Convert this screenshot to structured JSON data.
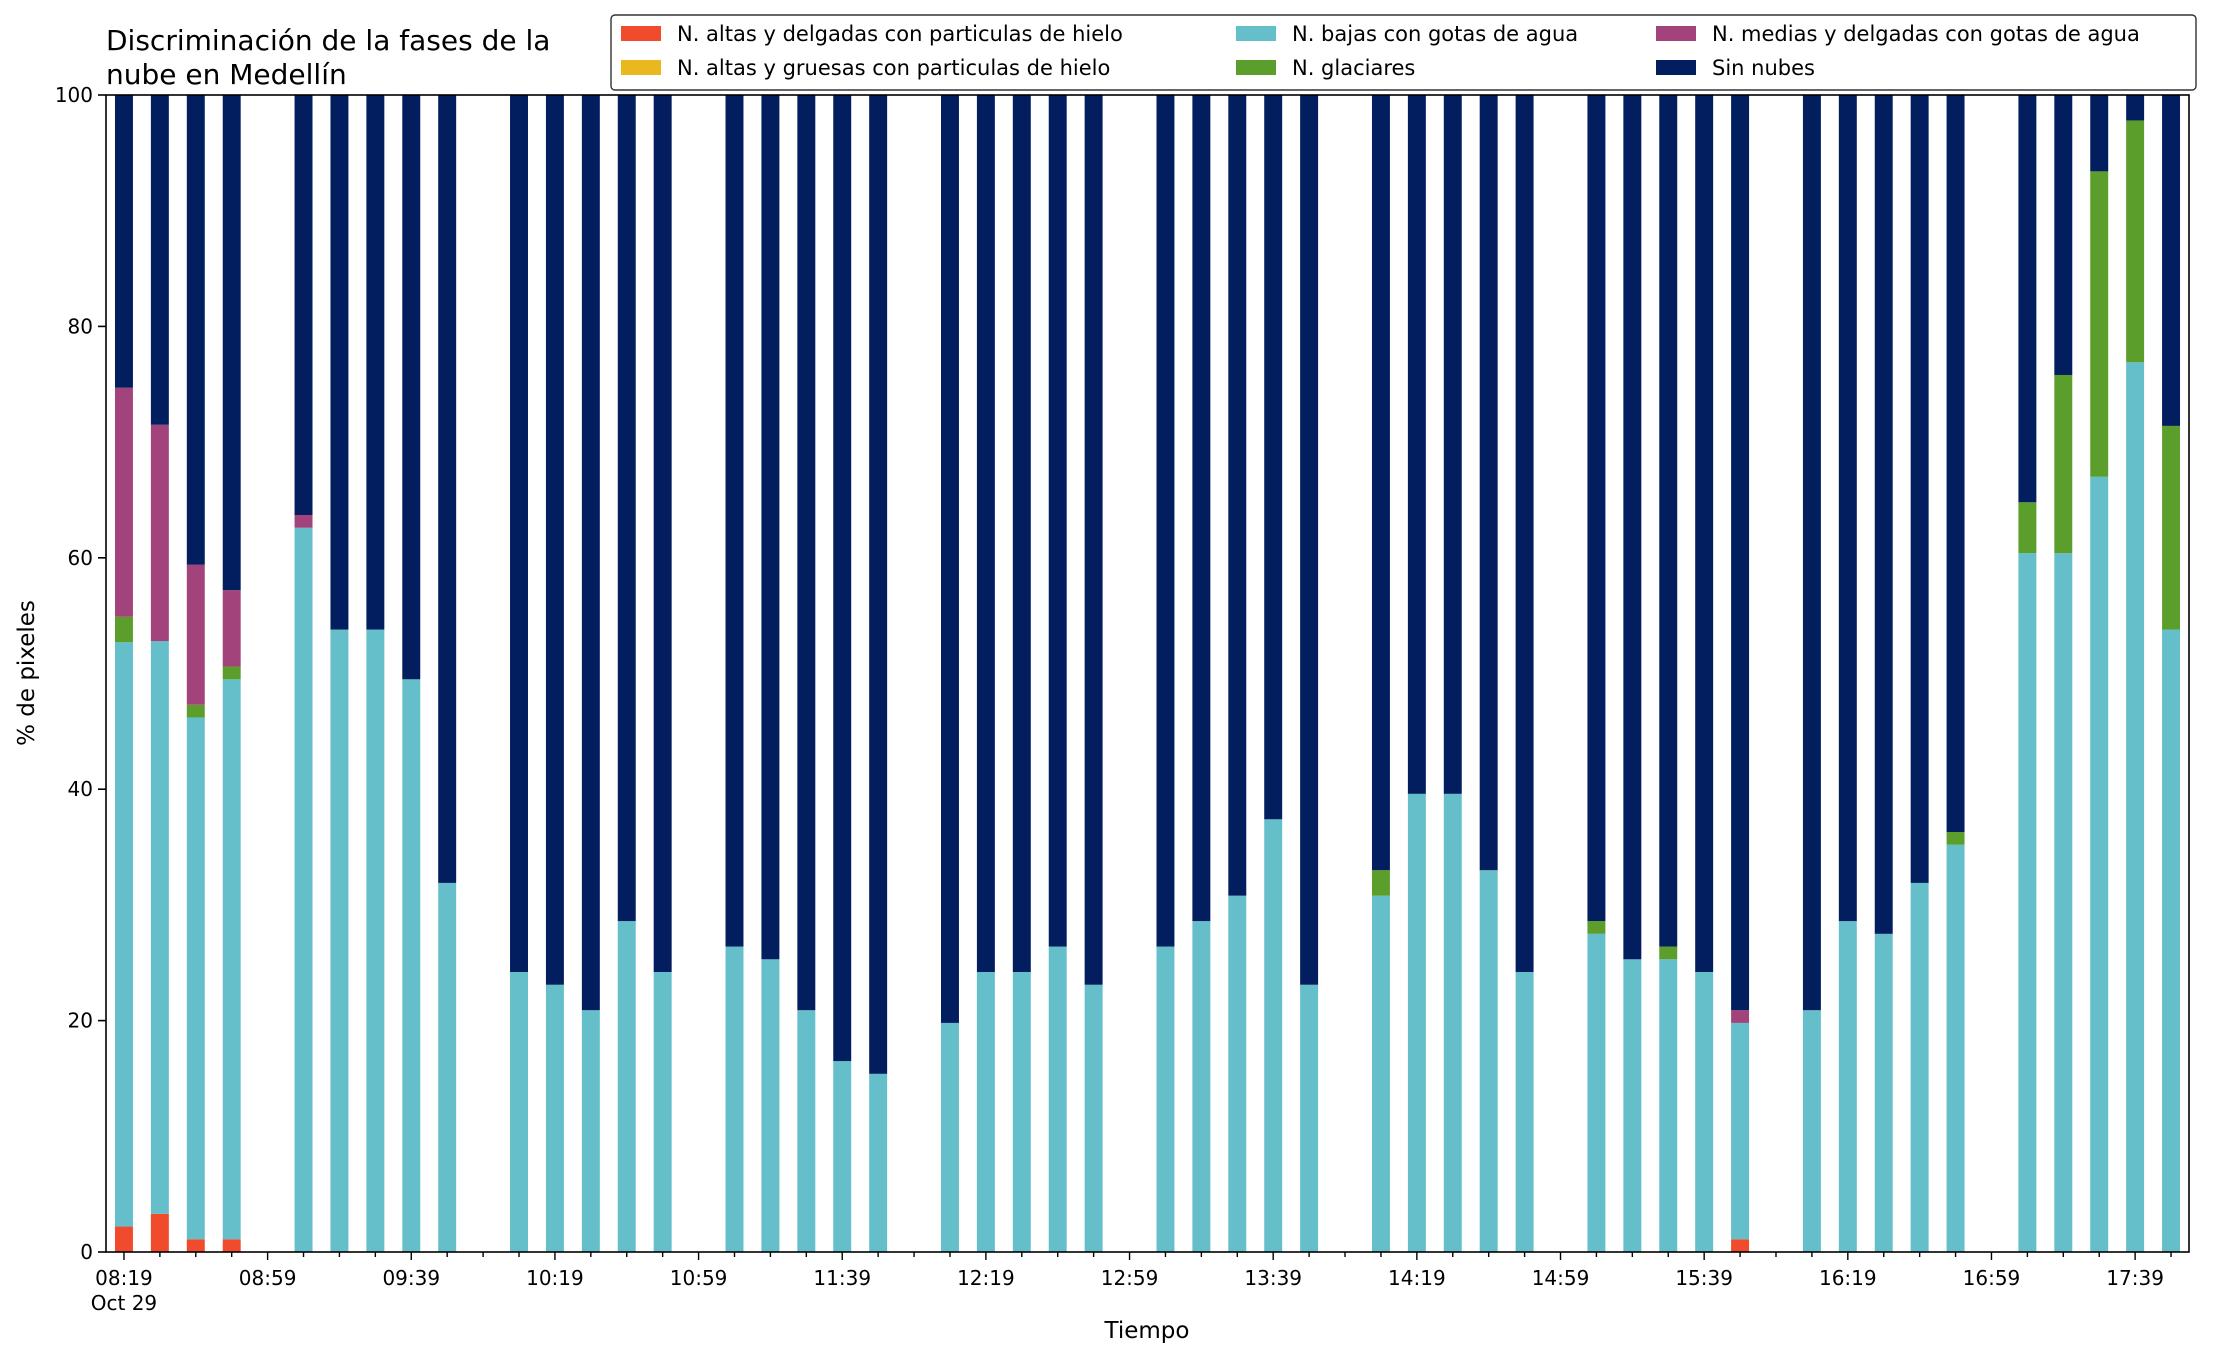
{
  "chart_data": {
    "type": "bar",
    "stacked": true,
    "title_lines": [
      "Discriminación de la fases de la",
      "nube en Medellín"
    ],
    "xlabel": "Tiempo",
    "ylabel": "% de pixeles",
    "ylim": [
      0,
      100
    ],
    "yticks": [
      0,
      20,
      40,
      60,
      80,
      100
    ],
    "x_tick_labels": [
      "08:19",
      "08:59",
      "09:39",
      "10:19",
      "10:59",
      "11:39",
      "12:19",
      "12:59",
      "13:39",
      "14:19",
      "14:59",
      "15:39",
      "16:19",
      "16:59",
      "17:39"
    ],
    "x_tick_sublabel": "Oct 29",
    "x_range_minutes": [
      494,
      1074
    ],
    "bar_width_minutes": 5,
    "legend_location": "top-right",
    "grid": false,
    "series": [
      {
        "name": "N. altas y delgadas con particulas de hielo",
        "color": "#f04b2c"
      },
      {
        "name": "N. altas y gruesas con particulas de hielo",
        "color": "#e8b81e"
      },
      {
        "name": "N. bajas con gotas de agua",
        "color": "#65bfcb"
      },
      {
        "name": "N. glaciares",
        "color": "#5c9e2c"
      },
      {
        "name": "N. medias y delgadas con gotas de agua",
        "color": "#a3437b"
      },
      {
        "name": "Sin nubes",
        "color": "#021e5f"
      }
    ],
    "bars": [
      {
        "time": "08:19",
        "values": [
          2.2,
          0,
          50.5,
          2.2,
          19.8,
          25.3
        ]
      },
      {
        "time": "08:29",
        "values": [
          3.3,
          0,
          49.5,
          0,
          18.7,
          28.5
        ]
      },
      {
        "time": "08:39",
        "values": [
          1.1,
          0,
          45.1,
          1.1,
          12.1,
          40.6
        ]
      },
      {
        "time": "08:49",
        "values": [
          1.1,
          0,
          48.4,
          1.1,
          6.6,
          42.8
        ]
      },
      {
        "time": "09:09",
        "values": [
          0,
          0,
          62.6,
          0,
          1.1,
          36.3
        ]
      },
      {
        "time": "09:19",
        "values": [
          0,
          0,
          53.8,
          0,
          0,
          46.2
        ]
      },
      {
        "time": "09:29",
        "values": [
          0,
          0,
          53.8,
          0,
          0,
          46.2
        ]
      },
      {
        "time": "09:39",
        "values": [
          0,
          0,
          49.5,
          0,
          0,
          50.5
        ]
      },
      {
        "time": "09:49",
        "values": [
          0,
          0,
          31.9,
          0,
          0,
          68.1
        ]
      },
      {
        "time": "10:09",
        "values": [
          0,
          0,
          24.2,
          0,
          0,
          75.8
        ]
      },
      {
        "time": "10:19",
        "values": [
          0,
          0,
          23.1,
          0,
          0,
          76.9
        ]
      },
      {
        "time": "10:29",
        "values": [
          0,
          0,
          20.9,
          0,
          0,
          79.1
        ]
      },
      {
        "time": "10:39",
        "values": [
          0,
          0,
          28.6,
          0,
          0,
          71.4
        ]
      },
      {
        "time": "10:49",
        "values": [
          0,
          0,
          24.2,
          0,
          0,
          75.8
        ]
      },
      {
        "time": "11:09",
        "values": [
          0,
          0,
          26.4,
          0,
          0,
          73.6
        ]
      },
      {
        "time": "11:19",
        "values": [
          0,
          0,
          25.3,
          0,
          0,
          74.7
        ]
      },
      {
        "time": "11:29",
        "values": [
          0,
          0,
          20.9,
          0,
          0,
          79.1
        ]
      },
      {
        "time": "11:39",
        "values": [
          0,
          0,
          16.5,
          0,
          0,
          83.5
        ]
      },
      {
        "time": "11:49",
        "values": [
          0,
          0,
          15.4,
          0,
          0,
          84.6
        ]
      },
      {
        "time": "12:09",
        "values": [
          0,
          0,
          19.8,
          0,
          0,
          80.2
        ]
      },
      {
        "time": "12:19",
        "values": [
          0,
          0,
          24.2,
          0,
          0,
          75.8
        ]
      },
      {
        "time": "12:29",
        "values": [
          0,
          0,
          24.2,
          0,
          0,
          75.8
        ]
      },
      {
        "time": "12:39",
        "values": [
          0,
          0,
          26.4,
          0,
          0,
          73.6
        ]
      },
      {
        "time": "12:49",
        "values": [
          0,
          0,
          23.1,
          0,
          0,
          76.9
        ]
      },
      {
        "time": "13:09",
        "values": [
          0,
          0,
          26.4,
          0,
          0,
          73.6
        ]
      },
      {
        "time": "13:19",
        "values": [
          0,
          0,
          28.6,
          0,
          0,
          71.4
        ]
      },
      {
        "time": "13:29",
        "values": [
          0,
          0,
          30.8,
          0,
          0,
          69.2
        ]
      },
      {
        "time": "13:39",
        "values": [
          0,
          0,
          37.4,
          0,
          0,
          62.6
        ]
      },
      {
        "time": "13:49",
        "values": [
          0,
          0,
          23.1,
          0,
          0,
          76.9
        ]
      },
      {
        "time": "14:09",
        "values": [
          0,
          0,
          30.8,
          2.2,
          0,
          67.0
        ]
      },
      {
        "time": "14:19",
        "values": [
          0,
          0,
          39.6,
          0,
          0,
          60.4
        ]
      },
      {
        "time": "14:29",
        "values": [
          0,
          0,
          39.6,
          0,
          0,
          60.4
        ]
      },
      {
        "time": "14:39",
        "values": [
          0,
          0,
          33.0,
          0,
          0,
          67.0
        ]
      },
      {
        "time": "14:49",
        "values": [
          0,
          0,
          24.2,
          0,
          0,
          75.8
        ]
      },
      {
        "time": "15:09",
        "values": [
          0,
          0,
          27.5,
          1.1,
          0,
          71.4
        ]
      },
      {
        "time": "15:19",
        "values": [
          0,
          0,
          25.3,
          0,
          0,
          74.7
        ]
      },
      {
        "time": "15:29",
        "values": [
          0,
          0,
          25.3,
          1.1,
          0,
          73.6
        ]
      },
      {
        "time": "15:39",
        "values": [
          0,
          0,
          24.2,
          0,
          0,
          75.8
        ]
      },
      {
        "time": "15:49",
        "values": [
          1.1,
          0,
          18.7,
          0,
          1.1,
          79.1
        ]
      },
      {
        "time": "16:09",
        "values": [
          0,
          0,
          20.9,
          0,
          0,
          79.1
        ]
      },
      {
        "time": "16:19",
        "values": [
          0,
          0,
          28.6,
          0,
          0,
          71.4
        ]
      },
      {
        "time": "16:29",
        "values": [
          0,
          0,
          27.5,
          0,
          0,
          72.5
        ]
      },
      {
        "time": "16:39",
        "values": [
          0,
          0,
          31.9,
          0,
          0,
          68.1
        ]
      },
      {
        "time": "16:49",
        "values": [
          0,
          0,
          35.2,
          1.1,
          0,
          63.7
        ]
      },
      {
        "time": "17:09",
        "values": [
          0,
          0,
          60.4,
          4.4,
          0,
          35.2
        ]
      },
      {
        "time": "17:19",
        "values": [
          0,
          0,
          60.4,
          15.4,
          0,
          24.2
        ]
      },
      {
        "time": "17:29",
        "values": [
          0,
          0,
          67.0,
          26.4,
          0,
          6.6
        ]
      },
      {
        "time": "17:39",
        "values": [
          0,
          0,
          76.9,
          20.9,
          0,
          2.2
        ]
      },
      {
        "time": "17:49",
        "values": [
          0,
          0,
          53.8,
          17.6,
          0,
          28.6
        ]
      }
    ]
  }
}
